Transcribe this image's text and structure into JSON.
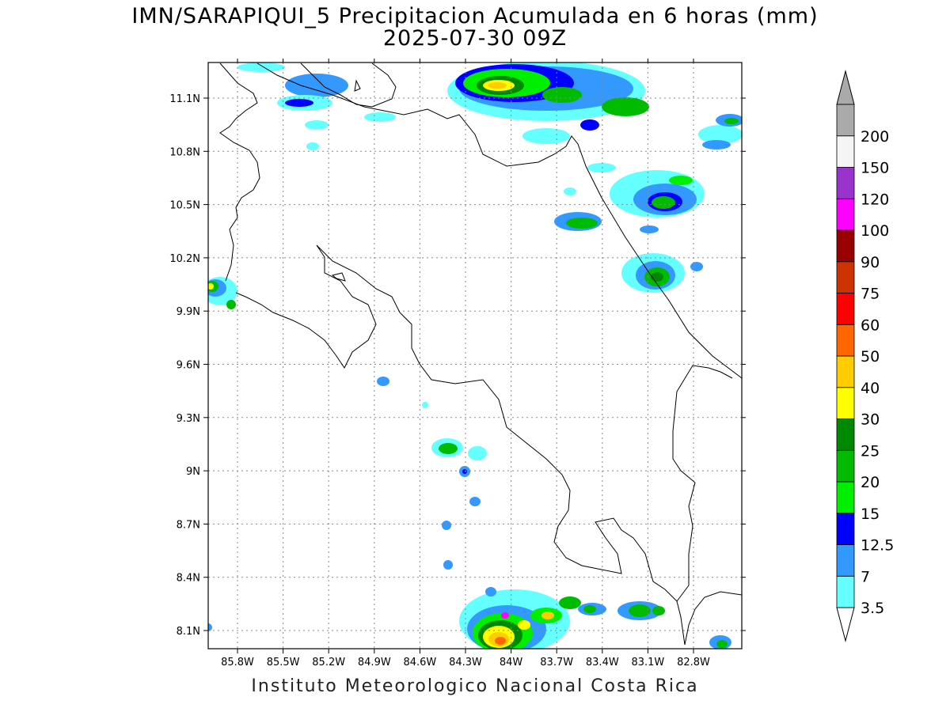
{
  "title": {
    "line1": "IMN/SARAPIQUI_5 Precipitacion Acumulada en 6 horas (mm)",
    "line2": "2025-07-30 09Z"
  },
  "credit": "Instituto Meteorologico Nacional Costa Rica",
  "map": {
    "lon_range": [
      -86.0,
      -83.0
    ],
    "lat_range": [
      8.0,
      11.2
    ],
    "x_ticks": [
      {
        "lon": -85.8,
        "label": "85.8W"
      },
      {
        "lon": -85.5,
        "label": "85.5W"
      },
      {
        "lon": -85.2,
        "label": "85.2W"
      },
      {
        "lon": -84.9,
        "label": "84.9W"
      },
      {
        "lon": -84.6,
        "label": "84.6W"
      },
      {
        "lon": -84.3,
        "label": "84.3W"
      },
      {
        "lon": -84.0,
        "label": "84W"
      },
      {
        "lon": -83.7,
        "label": "83.7W"
      },
      {
        "lon": -83.4,
        "label": "83.4W"
      },
      {
        "lon": -83.1,
        "label": "83.1W"
      },
      {
        "lon": -82.8,
        "label": "82.8W"
      }
    ],
    "y_ticks": [
      {
        "lat": 8.1,
        "label": "8.1N"
      },
      {
        "lat": 8.4,
        "label": "8.4N"
      },
      {
        "lat": 8.7,
        "label": "8.7N"
      },
      {
        "lat": 9.0,
        "label": "9N"
      },
      {
        "lat": 9.3,
        "label": "9.3N"
      },
      {
        "lat": 9.6,
        "label": "9.6N"
      },
      {
        "lat": 9.9,
        "label": "9.9N"
      },
      {
        "lat": 10.2,
        "label": "10.2N"
      },
      {
        "lat": 10.5,
        "label": "10.5N"
      },
      {
        "lat": 10.8,
        "label": "10.8N"
      },
      {
        "lat": 11.1,
        "label": "11.1N"
      }
    ],
    "grid": "dotted"
  },
  "colorbar": {
    "levels": [
      {
        "label": "3.5",
        "color": "#66ffff"
      },
      {
        "label": "7",
        "color": "#3399ff"
      },
      {
        "label": "12.5",
        "color": "#0000ff"
      },
      {
        "label": "15",
        "color": "#00ee00"
      },
      {
        "label": "20",
        "color": "#00bb00"
      },
      {
        "label": "25",
        "color": "#008800"
      },
      {
        "label": "30",
        "color": "#ffff00"
      },
      {
        "label": "40",
        "color": "#ffcc00"
      },
      {
        "label": "50",
        "color": "#ff6600"
      },
      {
        "label": "60",
        "color": "#ff0000"
      },
      {
        "label": "75",
        "color": "#cc3300"
      },
      {
        "label": "90",
        "color": "#990000"
      },
      {
        "label": "100",
        "color": "#ff00ff"
      },
      {
        "label": "120",
        "color": "#9933cc"
      },
      {
        "label": "150",
        "color": "#f5f5f5"
      },
      {
        "label": "200",
        "color": "#aaaaaa"
      }
    ],
    "under_color": "#ffffff",
    "over_color": "#aaaaaa"
  }
}
